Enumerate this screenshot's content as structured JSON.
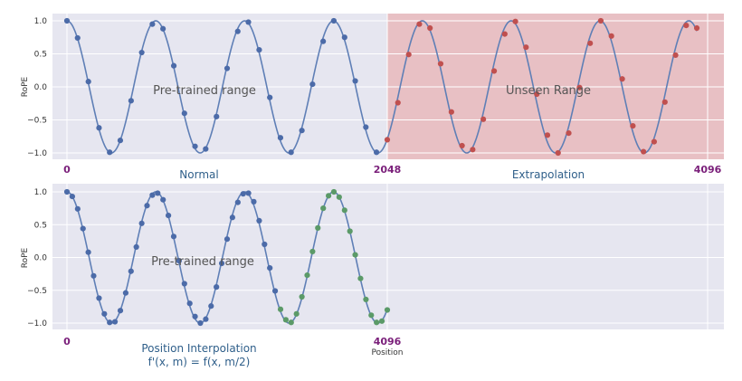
{
  "colors": {
    "plot_bg": "#e6e6f0",
    "grid": "#ffffff",
    "curve": "#5f7fb6",
    "pt_blue": "#4c6ba8",
    "pt_red": "#c0504f",
    "pt_green": "#5b9a68",
    "shade": "#e8b8bc",
    "caption": "#2f5f8a",
    "purple": "#7a1f7a"
  },
  "chart_data": [
    {
      "type": "line",
      "ylabel": "RoPE",
      "y_ticks": [
        "1.0",
        "0.5",
        "0.0",
        "−0.5",
        "−1.0"
      ],
      "ylim": [
        -1.0,
        1.0
      ],
      "xlim": [
        0,
        4096
      ],
      "x_tick_labels": [
        "0",
        "2048",
        "4096"
      ],
      "captions": [
        "Normal",
        "Extrapolation"
      ],
      "annotations": [
        "Pre-trained range",
        "Unseen Range"
      ],
      "shaded_region": [
        2048,
        4096
      ],
      "function": "y = cos(2π·x/568)",
      "series": [
        {
          "color": "blue",
          "x": [
            0,
            68,
            137,
            205,
            273,
            341,
            410,
            478,
            546,
            614,
            683,
            751,
            819,
            887,
            956,
            1024,
            1092,
            1160,
            1229,
            1297,
            1365,
            1433,
            1502,
            1570,
            1638,
            1706,
            1775,
            1843,
            1911,
            1979
          ],
          "y": [
            1.0,
            0.74,
            0.08,
            -0.62,
            -0.99,
            -0.81,
            -0.21,
            0.52,
            0.95,
            0.88,
            0.32,
            -0.4,
            -0.9,
            -0.94,
            -0.45,
            0.28,
            0.84,
            0.98,
            0.56,
            -0.16,
            -0.77,
            -0.99,
            -0.66,
            0.04,
            0.69,
            1.0,
            0.75,
            0.09,
            -0.61,
            -0.99
          ]
        },
        {
          "color": "red",
          "x": [
            2048,
            2116,
            2185,
            2253,
            2321,
            2389,
            2458,
            2526,
            2594,
            2662,
            2731,
            2799,
            2867,
            2935,
            3004,
            3072,
            3140,
            3208,
            3277,
            3345,
            3413,
            3481,
            3550,
            3618,
            3686,
            3754,
            3823,
            3891,
            3959,
            4027
          ],
          "y": [
            -0.8,
            -0.24,
            0.49,
            0.95,
            0.89,
            0.35,
            -0.38,
            -0.89,
            -0.95,
            -0.49,
            0.24,
            0.8,
            0.99,
            0.6,
            -0.11,
            -0.73,
            -1.0,
            -0.7,
            -0.01,
            0.66,
            1.0,
            0.77,
            0.12,
            -0.59,
            -0.98,
            -0.83,
            -0.23,
            0.48,
            0.93,
            0.89
          ]
        }
      ]
    },
    {
      "type": "line",
      "ylabel": "RoPE",
      "xlabel": "Position",
      "y_ticks": [
        "1.0",
        "0.5",
        "0.0",
        "−0.5",
        "−1.0"
      ],
      "ylim": [
        -1.0,
        1.0
      ],
      "xlim": [
        0,
        8192
      ],
      "x_tick_labels": [
        "0",
        "4096"
      ],
      "captions": [
        "Position Interpolation",
        "f'(x, m) = f(x, m/2)"
      ],
      "annotations": [
        "Pre-trained range"
      ],
      "function": "y = cos(2π·x/1136)",
      "series": [
        {
          "color": "blue",
          "x": [
            0,
            68,
            137,
            205,
            273,
            341,
            410,
            478,
            546,
            614,
            683,
            751,
            819,
            887,
            956,
            1024,
            1092,
            1160,
            1229,
            1297,
            1365,
            1433,
            1502,
            1570,
            1638,
            1706,
            1775,
            1843,
            1911,
            1979,
            2048,
            2116,
            2185,
            2253,
            2321,
            2389,
            2458,
            2526,
            2594,
            2662
          ],
          "y": [
            1.0,
            0.93,
            0.74,
            0.44,
            0.08,
            -0.28,
            -0.62,
            -0.86,
            -0.99,
            -0.98,
            -0.81,
            -0.54,
            -0.21,
            0.16,
            0.52,
            0.79,
            0.95,
            0.98,
            0.88,
            0.64,
            0.32,
            -0.05,
            -0.4,
            -0.7,
            -0.9,
            -1.0,
            -0.94,
            -0.74,
            -0.45,
            -0.09,
            0.28,
            0.61,
            0.84,
            0.97,
            0.98,
            0.85,
            0.56,
            0.2,
            -0.16,
            -0.51
          ]
        },
        {
          "color": "green",
          "x": [
            2731,
            2799,
            2867,
            2935,
            3004,
            3072,
            3140,
            3208,
            3277,
            3345,
            3413,
            3481,
            3550,
            3618,
            3686,
            3754,
            3823,
            3891,
            3959,
            4027,
            4096
          ],
          "y": [
            -0.79,
            -0.95,
            -0.99,
            -0.86,
            -0.6,
            -0.27,
            0.09,
            0.45,
            0.75,
            0.94,
            1.0,
            0.92,
            0.72,
            0.4,
            0.04,
            -0.32,
            -0.64,
            -0.88,
            -0.99,
            -0.97,
            -0.8
          ]
        }
      ]
    }
  ]
}
